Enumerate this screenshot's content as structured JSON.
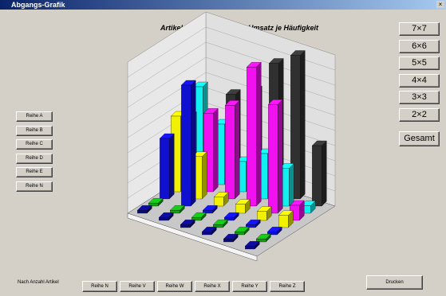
{
  "window": {
    "title": "Abgangs-Grafik"
  },
  "chart_data": {
    "type": "bar3d",
    "title": "Artikel Portfolio Gruppen  Umsatz je Häufigkeit",
    "ylim": [
      0,
      100
    ],
    "series": [
      {
        "color": "#0a0a80",
        "values": [
          2,
          2,
          2,
          2,
          2,
          2
        ]
      },
      {
        "color": "#10a010",
        "values": [
          2,
          2,
          2,
          2,
          2,
          2
        ]
      },
      {
        "color": "#1010d0",
        "values": [
          40,
          80,
          2,
          2,
          2,
          2
        ]
      },
      {
        "color": "#f0f000",
        "values": [
          50,
          28,
          6,
          6,
          6,
          8
        ]
      },
      {
        "color": "#f010f0",
        "values": [
          45,
          52,
          62,
          92,
          72,
          10
        ]
      },
      {
        "color": "#10f0f0",
        "values": [
          60,
          40,
          20,
          30,
          25,
          5
        ]
      },
      {
        "color": "#303030",
        "values": [
          2,
          55,
          62,
          85,
          95,
          40
        ]
      }
    ]
  },
  "size_buttons": [
    "7×7",
    "6×6",
    "5×5",
    "4×4",
    "3×3",
    "2×2"
  ],
  "total_button": "Gesamt",
  "row_buttons": [
    "Reihe A",
    "Reihe B",
    "Reihe C",
    "Reihe D",
    "Reihe E",
    "Reihe N"
  ],
  "column_buttons": [
    "Reihe N",
    "Reihe V",
    "Reihe W",
    "Reihe X",
    "Reihe Y",
    "Reihe Z"
  ],
  "footnote": "Nach Anzahl Artikel",
  "print_button": "Drucken"
}
